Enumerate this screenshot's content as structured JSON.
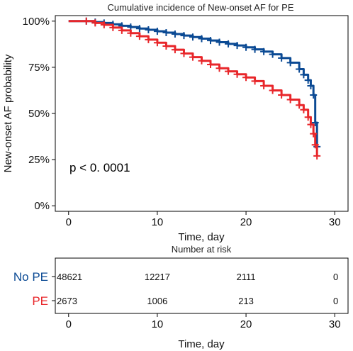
{
  "chart_data": [
    {
      "type": "line",
      "title": "Cumulative incidence of New-onset AF for PE",
      "xlabel": "Time, day",
      "ylabel": "New-onset AF probability",
      "xlim": [
        -1.5,
        31.5
      ],
      "ylim": [
        -0.03,
        1.03
      ],
      "x_ticks": [
        0,
        10,
        20,
        30
      ],
      "x_tick_labels": [
        "0",
        "10",
        "20",
        "30"
      ],
      "y_ticks": [
        0,
        0.25,
        0.5,
        0.75,
        1.0
      ],
      "y_tick_labels": [
        "0%",
        "25%",
        "50%",
        "75%",
        "100%"
      ],
      "grid": false,
      "annotation": "p < 0. 0001",
      "series": [
        {
          "name": "No PE",
          "color": "#0b4a94",
          "x": [
            0,
            1,
            2,
            3,
            4,
            5,
            6,
            7,
            8,
            9,
            10,
            11,
            12,
            13,
            14,
            15,
            16,
            17,
            18,
            19,
            20,
            21,
            22,
            23,
            24,
            25,
            26,
            26.5,
            27,
            27.3,
            27.6,
            27.8,
            28.0
          ],
          "y": [
            1.0,
            1.0,
            1.0,
            0.995,
            0.99,
            0.983,
            0.975,
            0.968,
            0.96,
            0.953,
            0.945,
            0.938,
            0.93,
            0.922,
            0.914,
            0.905,
            0.895,
            0.886,
            0.877,
            0.868,
            0.858,
            0.847,
            0.835,
            0.82,
            0.8,
            0.775,
            0.74,
            0.71,
            0.68,
            0.65,
            0.6,
            0.45,
            0.32
          ]
        },
        {
          "name": "PE",
          "color": "#e8262a",
          "x": [
            0,
            1,
            2,
            3,
            4,
            5,
            6,
            7,
            8,
            9,
            10,
            11,
            12,
            13,
            14,
            15,
            16,
            17,
            18,
            19,
            20,
            21,
            22,
            23,
            24,
            25,
            26,
            26.5,
            27,
            27.3,
            27.6,
            27.8,
            28.0
          ],
          "y": [
            1.0,
            1.0,
            1.0,
            0.99,
            0.98,
            0.965,
            0.95,
            0.935,
            0.918,
            0.9,
            0.883,
            0.865,
            0.845,
            0.825,
            0.805,
            0.785,
            0.765,
            0.745,
            0.728,
            0.712,
            0.695,
            0.675,
            0.65,
            0.625,
            0.6,
            0.575,
            0.545,
            0.52,
            0.48,
            0.44,
            0.39,
            0.33,
            0.27
          ]
        }
      ]
    },
    {
      "type": "table",
      "title": "Number at risk",
      "xlabel": "Time, day",
      "xlim": [
        -1.5,
        31.5
      ],
      "x_ticks": [
        0,
        10,
        20,
        30
      ],
      "x_tick_labels": [
        "0",
        "10",
        "20",
        "30"
      ],
      "rows": [
        {
          "name": "No PE",
          "color": "#0b4a94",
          "values": [
            "48621",
            "12217",
            "2111",
            "0"
          ]
        },
        {
          "name": "PE",
          "color": "#e8262a",
          "values": [
            "2673",
            "1006",
            "213",
            "0"
          ]
        }
      ]
    }
  ]
}
